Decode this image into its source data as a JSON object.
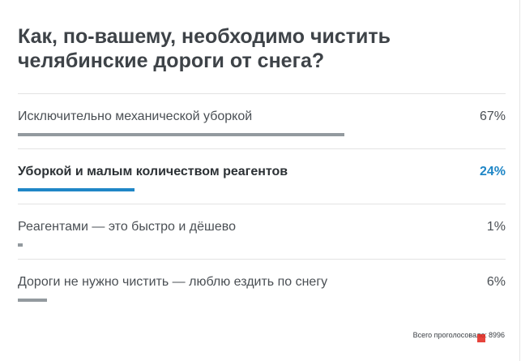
{
  "poll": {
    "question": "Как, по-вашему, необходимо чистить челябинские дороги от снега?",
    "options": [
      {
        "label": "Исключительно механической уборкой",
        "percent_label": "67%",
        "percent": 67,
        "selected": false
      },
      {
        "label": "Уборкой и малым количеством реагентов",
        "percent_label": "24%",
        "percent": 24,
        "selected": true
      },
      {
        "label": "Реагентами — это быстро и дёшево",
        "percent_label": "1%",
        "percent": 1,
        "selected": false
      },
      {
        "label": "Дороги не нужно чистить — люблю ездить по снегу",
        "percent_label": "6%",
        "percent": 6,
        "selected": false
      }
    ],
    "total_label": "Всего проголосовало:",
    "total_count": "8996"
  },
  "colors": {
    "accent": "#1f86c6",
    "bar": "#939a9f",
    "text": "#4a4f54"
  }
}
